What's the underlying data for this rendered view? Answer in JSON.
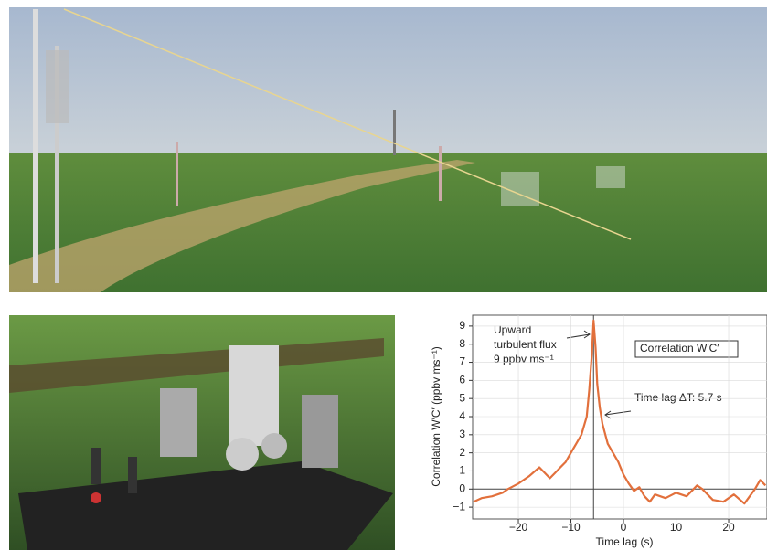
{
  "chart_data": {
    "type": "line",
    "x_label": "Time lag (s)",
    "y_label": "Correlation W′C′ (ppbv ms⁻¹)",
    "annotations": [
      "Upward",
      "turbulent flux",
      "9 ppbv ms⁻¹",
      "Correlation W′C′",
      "Time lag ΔT: 5.7 s"
    ],
    "x": [
      -28.5,
      -27,
      -25,
      -23,
      -22,
      -20,
      -18,
      -16,
      -15,
      -14,
      -13,
      -12,
      -11,
      -10,
      -9,
      -8,
      -7,
      -6.5,
      -6,
      -5.7,
      -5.3,
      -5,
      -4.5,
      -4,
      -3,
      -2,
      -1,
      0,
      1,
      2,
      3,
      4,
      5,
      6,
      8,
      10,
      12,
      14,
      15,
      17,
      19,
      21,
      23,
      25,
      26,
      27
    ],
    "series": [
      {
        "name": "Correlation W′C′",
        "color": "#e2703c",
        "values": [
          -0.7,
          -0.5,
          -0.4,
          -0.2,
          0,
          0.3,
          0.7,
          1.2,
          0.9,
          0.6,
          0.9,
          1.2,
          1.5,
          2.0,
          2.5,
          3.0,
          4.0,
          5.5,
          7.5,
          9.3,
          7.8,
          5.8,
          4.5,
          3.6,
          2.5,
          2.0,
          1.5,
          0.8,
          0.3,
          -0.1,
          0.1,
          -0.4,
          -0.7,
          -0.3,
          -0.5,
          -0.2,
          -0.4,
          0.2,
          0,
          -0.6,
          -0.7,
          -0.3,
          -0.8,
          0,
          0.5,
          0.2
        ]
      }
    ],
    "vline": -5.7,
    "hline": 0,
    "xlim": [
      -28.7,
      27.3
    ],
    "ylim": [
      -1.65,
      9.6
    ],
    "xticks": [
      {
        "value": -20,
        "label": "−20"
      },
      {
        "value": -10,
        "label": "−10"
      },
      0,
      10,
      20
    ],
    "yticks": [
      {
        "value": -1,
        "label": "−1"
      },
      0,
      1,
      2,
      3,
      4,
      5,
      6,
      7,
      8,
      9
    ],
    "grid": true
  }
}
